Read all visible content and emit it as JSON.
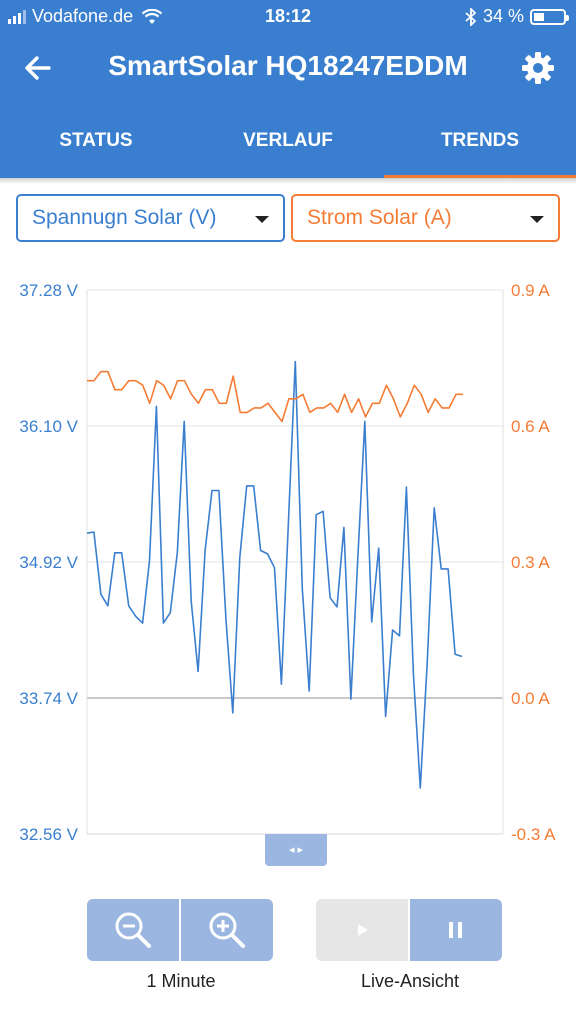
{
  "status_bar": {
    "carrier": "Vodafone.de",
    "time": "18:12",
    "battery": "34 %",
    "battery_level": 0.34
  },
  "header": {
    "title": "SmartSolar HQ18247EDDM",
    "back_icon": "arrow-left-icon",
    "settings_icon": "gear-icon"
  },
  "tabs": [
    {
      "label": "STATUS",
      "active": false
    },
    {
      "label": "VERLAUF",
      "active": false
    },
    {
      "label": "TRENDS",
      "active": true
    }
  ],
  "selectors": {
    "left": {
      "value": "Spannugn Solar (V)",
      "color": "#3a7fcf"
    },
    "right": {
      "value": "Strom Solar (A)",
      "color": "#f57c35"
    }
  },
  "chart_data": {
    "type": "line",
    "left_axis": {
      "ticks": [
        "37.28 V",
        "36.10 V",
        "34.92 V",
        "33.74 V",
        "32.56 V"
      ],
      "ylim": [
        32.56,
        37.28
      ],
      "color": "#3a7fcf"
    },
    "right_axis": {
      "ticks": [
        "0.9 A",
        "0.6 A",
        "0.3 A",
        "0.0 A",
        "-0.3 A"
      ],
      "ylim": [
        -0.3,
        0.9
      ],
      "color": "#f57c35"
    },
    "series": [
      {
        "axis": "left",
        "color": "#3a7fcf",
        "values": [
          35.17,
          35.18,
          34.64,
          34.54,
          35.0,
          35.0,
          34.54,
          34.45,
          34.39,
          34.93,
          36.27,
          34.39,
          34.48,
          35.0,
          36.14,
          34.58,
          33.97,
          35.02,
          35.54,
          35.54,
          34.43,
          33.61,
          34.96,
          35.58,
          35.58,
          35.02,
          34.99,
          34.87,
          33.86,
          35.26,
          36.66,
          34.69,
          33.8,
          35.33,
          35.36,
          34.61,
          34.53,
          35.22,
          33.73,
          34.95,
          36.14,
          34.4,
          35.04,
          33.58,
          34.33,
          34.28,
          35.57,
          33.95,
          32.96,
          34.06,
          35.39,
          34.86,
          34.86,
          34.12,
          34.1
        ],
        "x_range": [
          0,
          54
        ]
      },
      {
        "axis": "right",
        "color": "#f57c35",
        "values": [
          0.7,
          0.7,
          0.72,
          0.72,
          0.68,
          0.68,
          0.7,
          0.7,
          0.69,
          0.65,
          0.7,
          0.69,
          0.66,
          0.7,
          0.7,
          0.67,
          0.65,
          0.68,
          0.68,
          0.65,
          0.65,
          0.71,
          0.63,
          0.63,
          0.64,
          0.64,
          0.65,
          0.63,
          0.61,
          0.66,
          0.66,
          0.67,
          0.63,
          0.64,
          0.64,
          0.65,
          0.63,
          0.67,
          0.63,
          0.66,
          0.62,
          0.65,
          0.65,
          0.69,
          0.66,
          0.62,
          0.65,
          0.69,
          0.67,
          0.63,
          0.66,
          0.64,
          0.64,
          0.67,
          0.67
        ],
        "x_range": [
          0,
          54
        ]
      }
    ],
    "grid": true
  },
  "controls": {
    "zoom_out_icon": "zoom-out-icon",
    "zoom_in_icon": "zoom-in-icon",
    "zoom_caption": "1 Minute",
    "play_icon": "play-icon",
    "pause_icon": "pause-icon",
    "live_caption": "Live-Ansicht"
  }
}
